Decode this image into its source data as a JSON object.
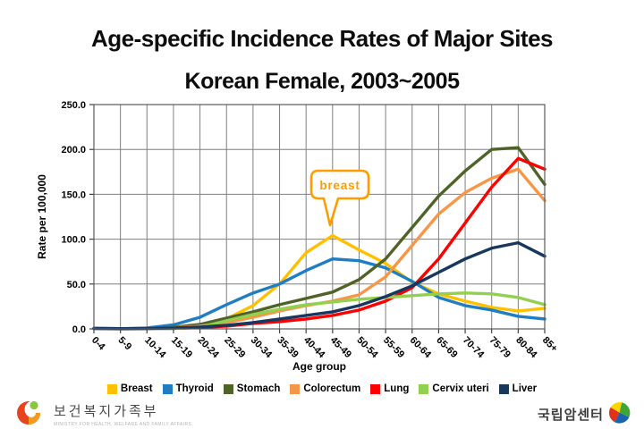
{
  "title": {
    "line1": "Age-specific Incidence Rates of Major Sites",
    "line2": "Korean Female, 2003~2005"
  },
  "callout": {
    "label": "breast"
  },
  "chart_data": {
    "type": "line",
    "title": "Age-specific Incidence Rates of Major Sites, Korean Female, 2003~2005",
    "xlabel": "Age group",
    "ylabel": "Rate per 100,000",
    "ylim": [
      0,
      250
    ],
    "ytick_step": 50,
    "grid": true,
    "legend_position": "bottom",
    "categories": [
      "0-4",
      "5-9",
      "10-14",
      "15-19",
      "20-24",
      "25-29",
      "30-34",
      "35-39",
      "40-44",
      "45-49",
      "50-54",
      "55-59",
      "60-64",
      "65-69",
      "70-74",
      "75-79",
      "80-84",
      "85+"
    ],
    "series": [
      {
        "name": "Breast",
        "color": "#FFC000",
        "values": [
          0.2,
          0.1,
          0.2,
          0.5,
          2.1,
          11,
          26,
          50,
          85,
          104,
          88,
          73,
          52,
          39,
          31,
          24,
          20,
          23
        ]
      },
      {
        "name": "Thyroid",
        "color": "#1F7EC2",
        "values": [
          0.1,
          0.2,
          1.0,
          4.5,
          13,
          27,
          40,
          50,
          65,
          78,
          76,
          68,
          53,
          35,
          26,
          21,
          14,
          11
        ]
      },
      {
        "name": "Stomach",
        "color": "#4F6228",
        "values": [
          0.4,
          0.2,
          0.4,
          1.8,
          5,
          12,
          19,
          27,
          34,
          41,
          55,
          78,
          113,
          148,
          176,
          200,
          202,
          161
        ]
      },
      {
        "name": "Colorectum",
        "color": "#F79646",
        "values": [
          0.4,
          0.2,
          0.4,
          1.2,
          3,
          7,
          13,
          20,
          26,
          31,
          38,
          58,
          93,
          128,
          152,
          168,
          178,
          143
        ]
      },
      {
        "name": "Lung",
        "color": "#FF0000",
        "values": [
          0.2,
          0.1,
          0.2,
          0.6,
          1.5,
          3,
          6,
          8,
          11,
          15,
          21,
          31,
          46,
          78,
          118,
          158,
          190,
          178
        ]
      },
      {
        "name": "Cervix uteri",
        "color": "#92D050",
        "values": [
          0.1,
          0.1,
          0.1,
          0.4,
          1.8,
          9,
          16,
          22,
          27,
          30,
          33,
          35,
          37,
          39,
          40,
          39,
          35,
          27
        ]
      },
      {
        "name": "Liver",
        "color": "#17375E",
        "values": [
          0.7,
          0.3,
          0.4,
          1.0,
          2,
          4,
          7,
          11,
          15,
          19,
          26,
          36,
          48,
          63,
          78,
          90,
          96,
          81
        ]
      }
    ]
  },
  "footer": {
    "left_org_kr": "보건복지가족부",
    "left_org_en": "MINISTRY FOR HEALTH, WELFARE AND FAMILY AFFAIRS",
    "right_org_kr": "국립암센터"
  }
}
